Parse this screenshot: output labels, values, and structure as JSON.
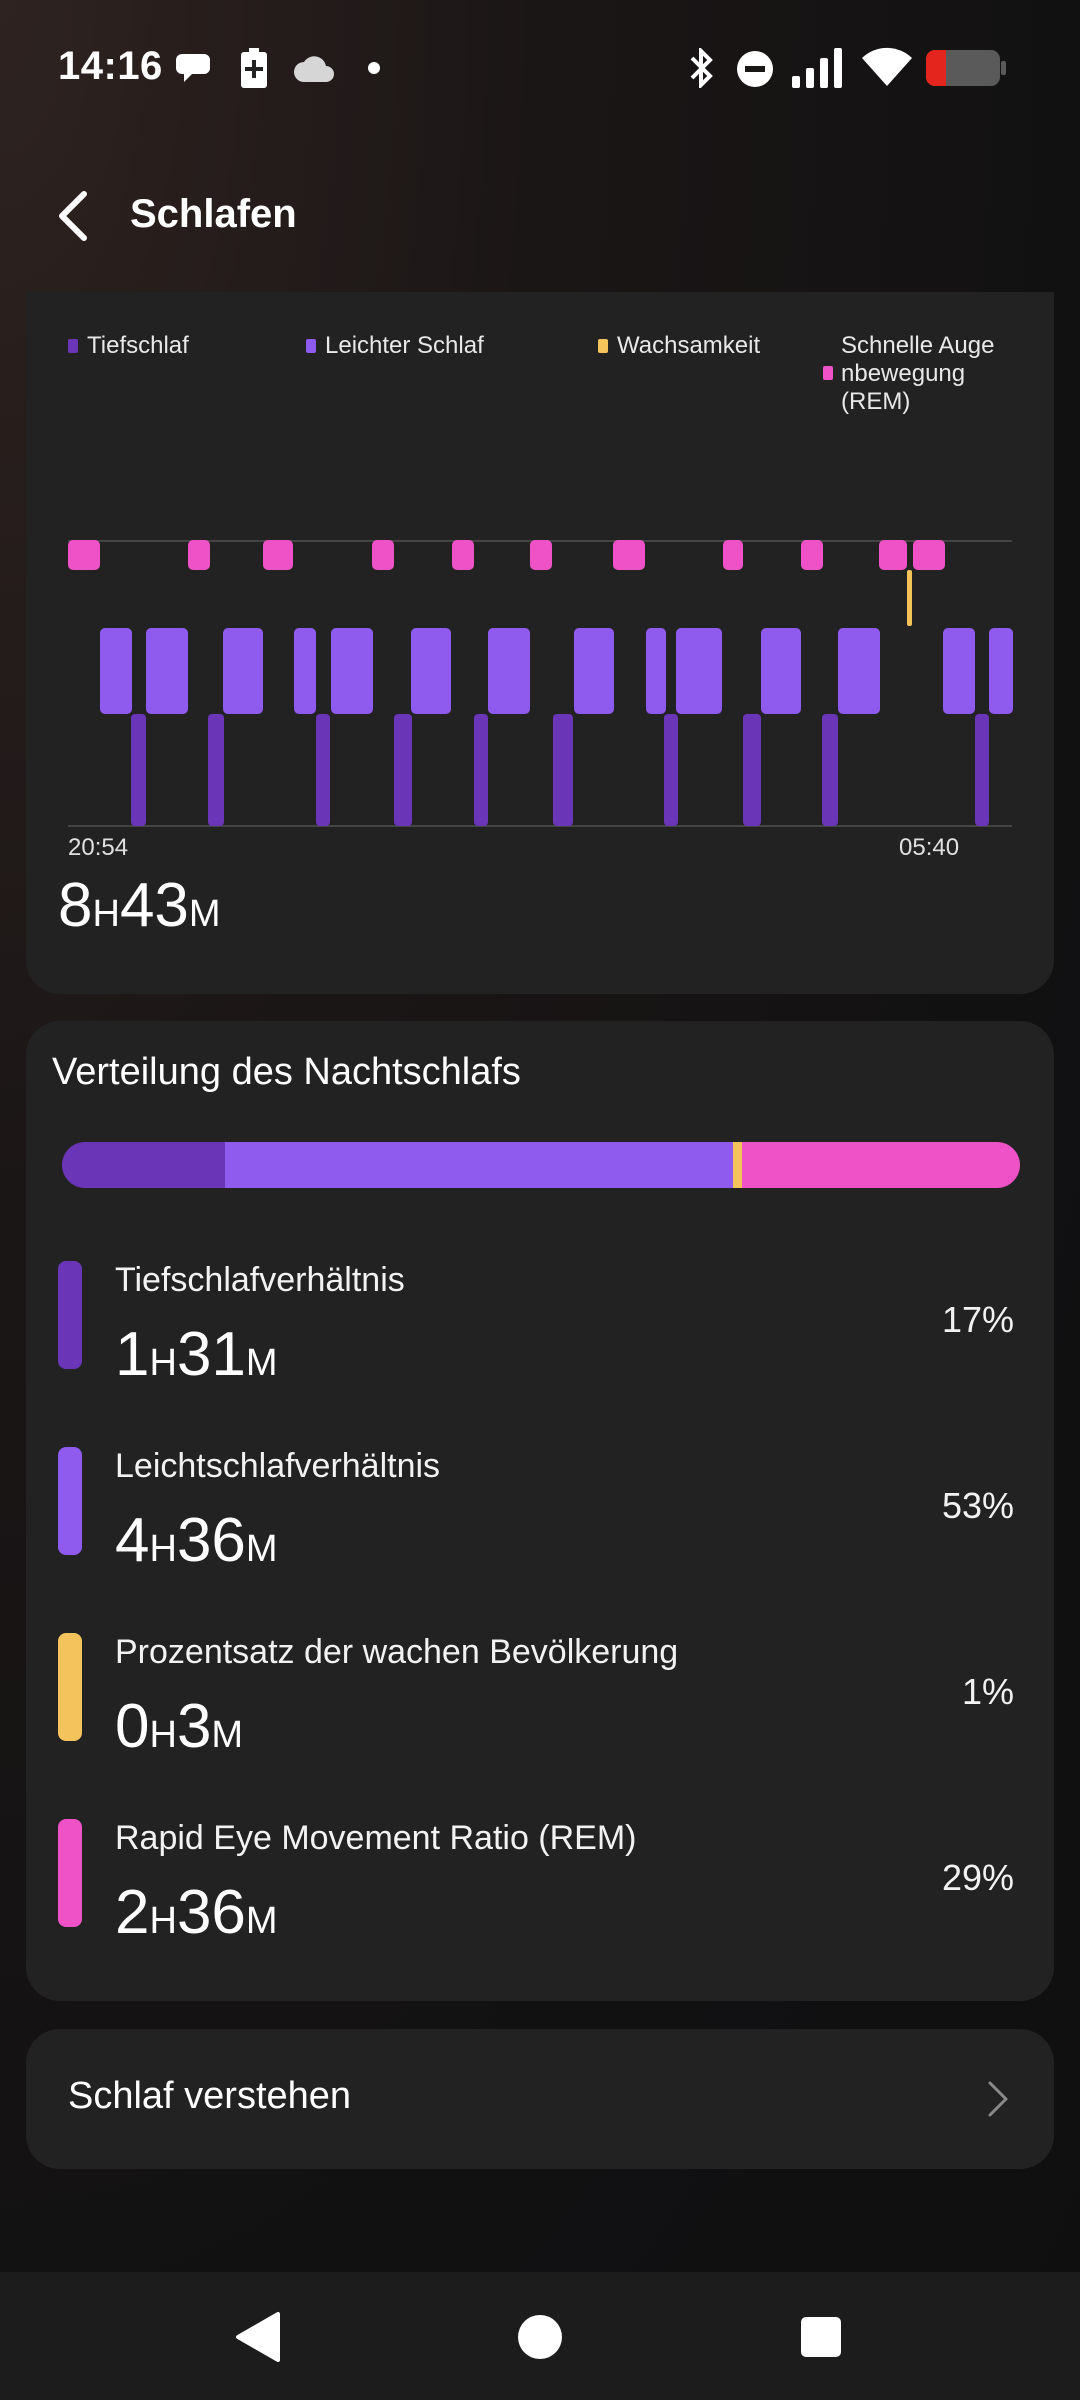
{
  "status_bar": {
    "time": "14:16",
    "left_icons": [
      "chat-bubble-icon",
      "battery-saver-icon",
      "cloud-icon",
      "dot-icon"
    ],
    "right_icons": [
      "bluetooth-icon",
      "do-not-disturb-icon",
      "signal-icon",
      "wifi-icon",
      "battery-icon"
    ],
    "battery_level": 0.2
  },
  "header": {
    "title": "Schlafen"
  },
  "legend": {
    "deep": "Tiefschlaf",
    "light": "Leichter Schlaf",
    "awake": "Wachsamkeit",
    "rem_line1": "Schnelle Auge",
    "rem_line2": "nbewegung",
    "rem_line3": "(REM)"
  },
  "colors": {
    "deep": "#6b35b8",
    "light": "#8f5bef",
    "awake": "#f4c35b",
    "rem": "#ef52c6",
    "card": "#232223"
  },
  "chart": {
    "start_time": "20:54",
    "end_time": "05:40"
  },
  "total": {
    "hours": "8",
    "hours_unit": "H",
    "minutes": "43",
    "minutes_unit": "M"
  },
  "distribution": {
    "title": "Verteilung des Nachtschlafs",
    "bar_fractions": {
      "deep": 0.17,
      "light": 0.53,
      "awake": 0.01,
      "rem": 0.29
    },
    "rows": [
      {
        "label": "Tiefschlafverhältnis",
        "hours": "1",
        "h_unit": "H",
        "minutes": "31",
        "m_unit": "M",
        "percent": "17%"
      },
      {
        "label": "Leichtschlafverhältnis",
        "hours": "4",
        "h_unit": "H",
        "minutes": "36",
        "m_unit": "M",
        "percent": "53%"
      },
      {
        "label": "Prozentsatz der wachen Bevölkerung",
        "hours": "0",
        "h_unit": "H",
        "minutes": "3",
        "m_unit": "M",
        "percent": "1%"
      },
      {
        "label": "Rapid Eye Movement Ratio (REM)",
        "hours": "2",
        "h_unit": "H",
        "minutes": "36",
        "m_unit": "M",
        "percent": "29%"
      }
    ]
  },
  "link": {
    "label": "Schlaf verstehen"
  },
  "nav": [
    "back-triangle-icon",
    "home-circle-icon",
    "recents-square-icon"
  ]
}
